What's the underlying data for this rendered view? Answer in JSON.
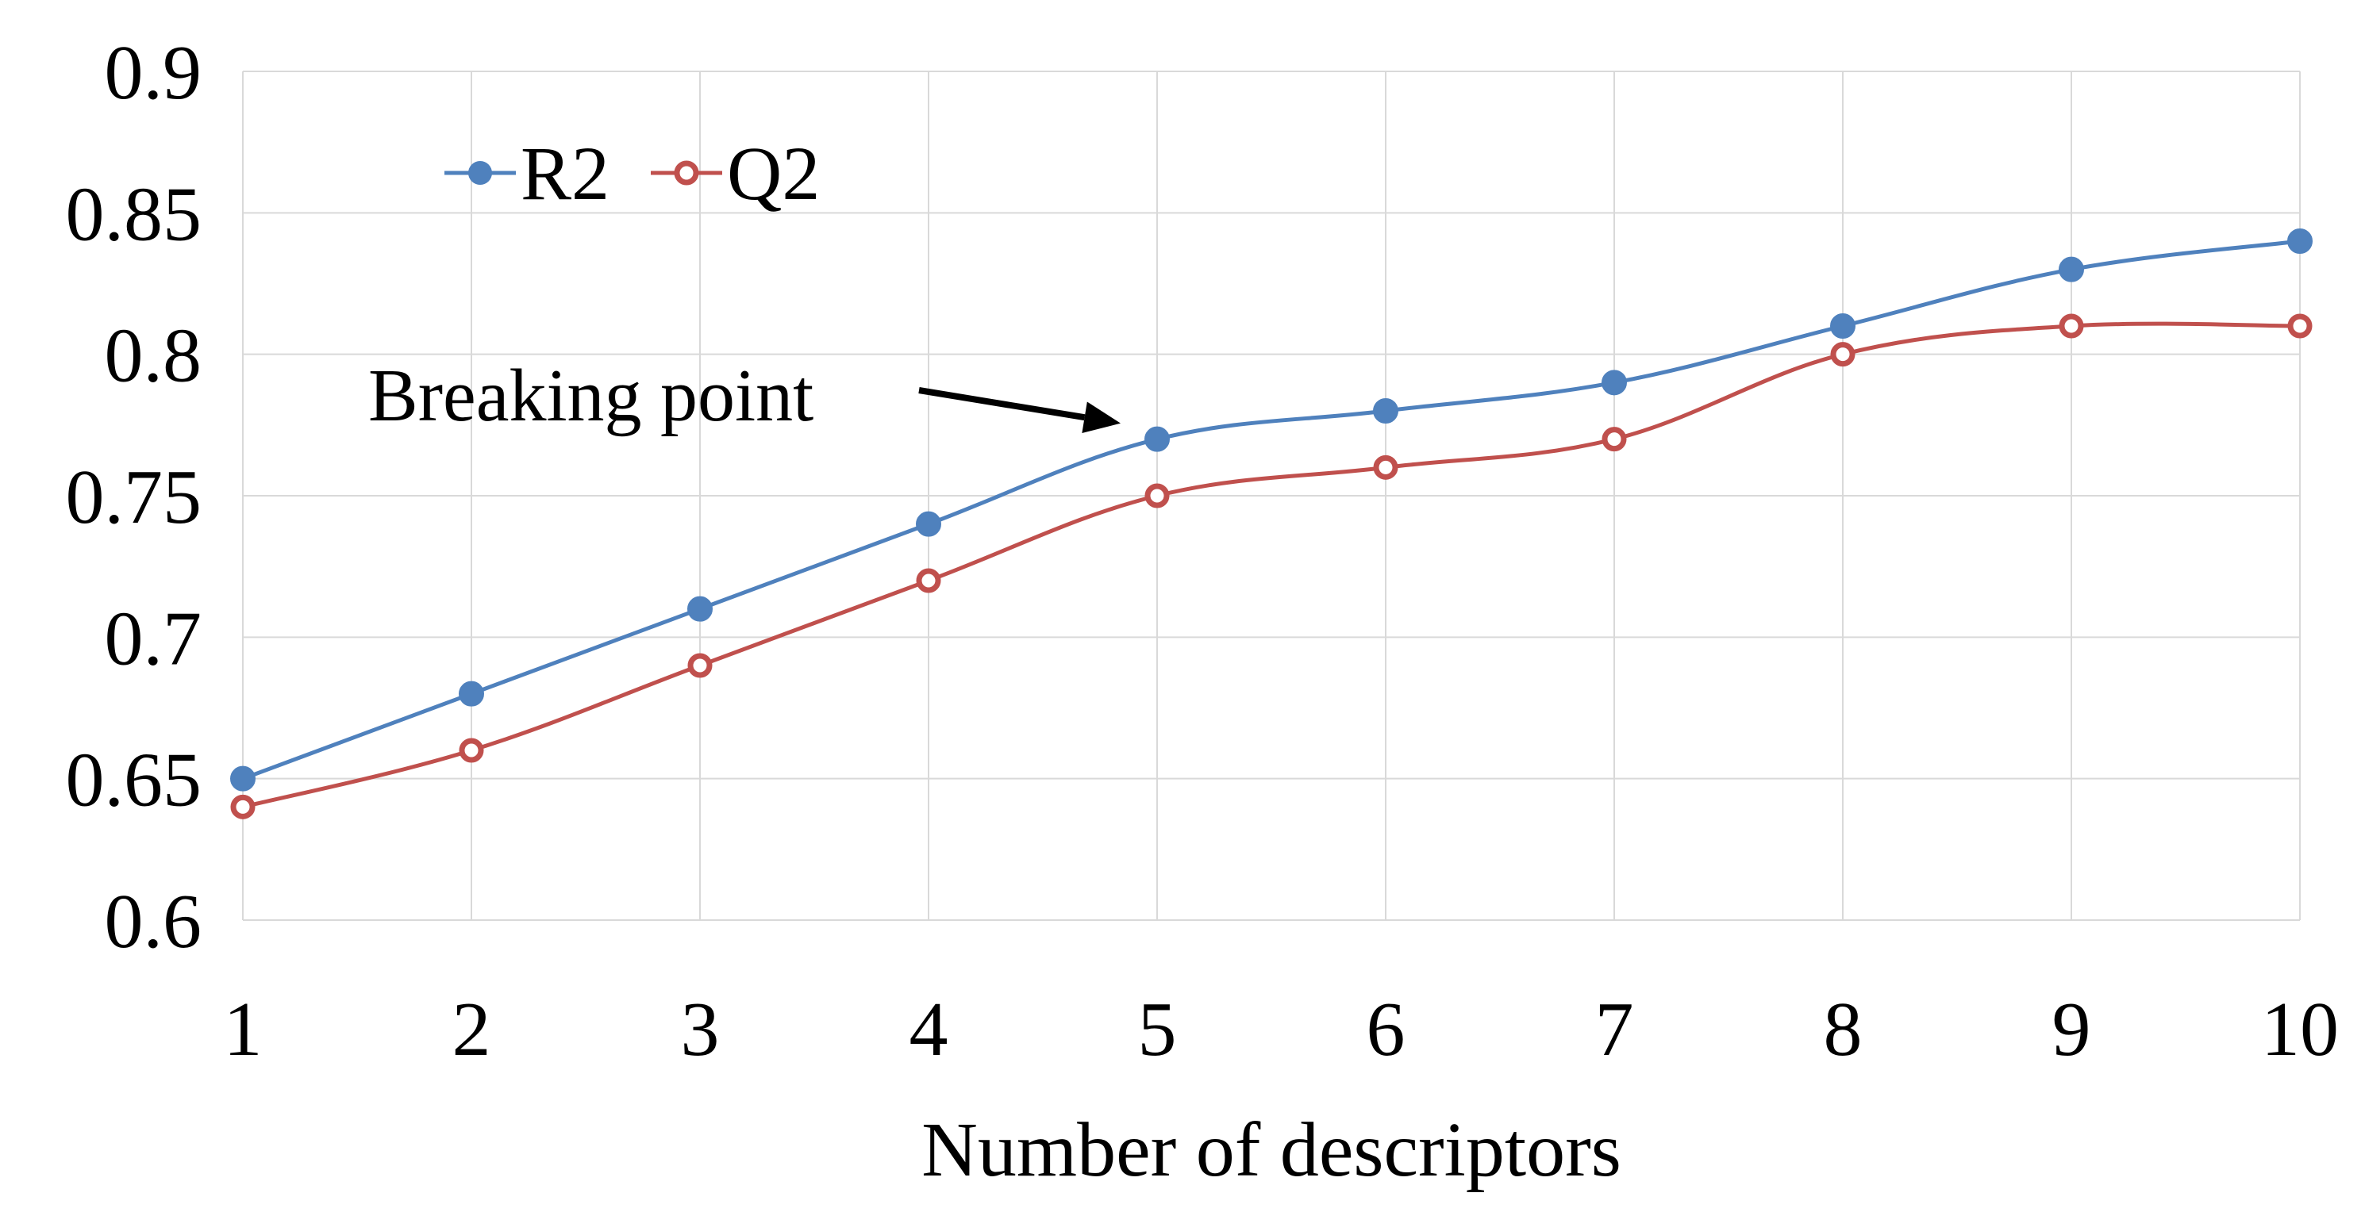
{
  "chart_data": {
    "type": "line",
    "title": "",
    "xlabel": "Number of descriptors",
    "ylabel": "",
    "x": [
      1,
      2,
      3,
      4,
      5,
      6,
      7,
      8,
      9,
      10
    ],
    "x_tick_labels": [
      "1",
      "2",
      "3",
      "4",
      "5",
      "6",
      "7",
      "8",
      "9",
      "10"
    ],
    "ylim": [
      0.6,
      0.9
    ],
    "y_ticks": [
      0.6,
      0.65,
      0.7,
      0.75,
      0.8,
      0.85,
      0.9
    ],
    "y_tick_labels": [
      "0.6",
      "0.65",
      "0.7",
      "0.75",
      "0.8",
      "0.85",
      "0.9"
    ],
    "grid": true,
    "smooth": true,
    "legend_position": "top-left",
    "series": [
      {
        "name": "R2",
        "color": "#4f81bd",
        "marker": "filled-circle",
        "values": [
          0.65,
          0.68,
          0.71,
          0.74,
          0.77,
          0.78,
          0.79,
          0.81,
          0.83,
          0.84
        ]
      },
      {
        "name": "Q2",
        "color": "#c0504d",
        "marker": "hollow-circle",
        "values": [
          0.64,
          0.66,
          0.69,
          0.72,
          0.75,
          0.76,
          0.77,
          0.8,
          0.81,
          0.81
        ]
      }
    ],
    "annotations": [
      {
        "text": "Breaking point",
        "target_series": "R2",
        "target_x": 5,
        "target_y": 0.77
      }
    ]
  }
}
